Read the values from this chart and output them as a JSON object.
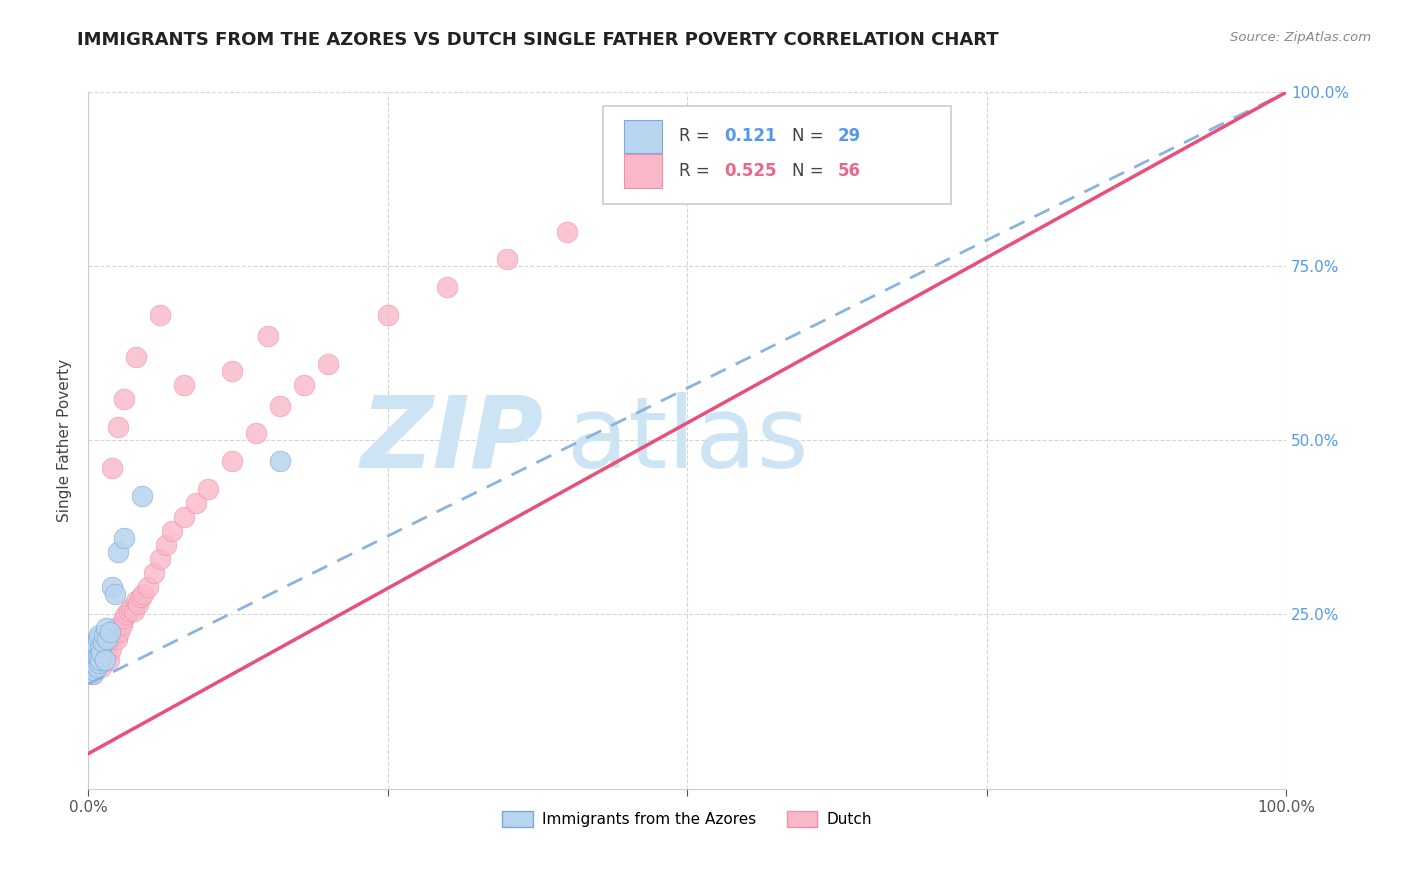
{
  "title": "IMMIGRANTS FROM THE AZORES VS DUTCH SINGLE FATHER POVERTY CORRELATION CHART",
  "source": "Source: ZipAtlas.com",
  "ylabel": "Single Father Poverty",
  "xlim": [
    0,
    1
  ],
  "ylim": [
    0,
    1
  ],
  "color_azores_fill": "#b8d4ee",
  "color_azores_edge": "#7aaadd",
  "color_dutch_fill": "#f9b8c8",
  "color_dutch_edge": "#f090aa",
  "color_line_azores": "#8ab4dd",
  "color_line_dutch": "#e8507a",
  "color_r_azores": "#5599ee",
  "color_r_dutch": "#ee6688",
  "color_n_azores": "#5599ee",
  "color_n_dutch": "#ee6688",
  "watermark_color": "#cce4f4",
  "background_color": "#ffffff",
  "grid_color": "#cccccc",
  "title_color": "#222222",
  "title_fontsize": 13,
  "right_tick_color": "#5599ee",
  "azores_x": [
    0.002,
    0.003,
    0.004,
    0.004,
    0.005,
    0.005,
    0.006,
    0.006,
    0.007,
    0.007,
    0.008,
    0.008,
    0.009,
    0.009,
    0.01,
    0.01,
    0.011,
    0.012,
    0.013,
    0.014,
    0.015,
    0.016,
    0.018,
    0.02,
    0.022,
    0.025,
    0.03,
    0.045,
    0.16
  ],
  "azores_y": [
    0.175,
    0.185,
    0.165,
    0.195,
    0.17,
    0.2,
    0.18,
    0.21,
    0.175,
    0.205,
    0.19,
    0.215,
    0.18,
    0.22,
    0.185,
    0.2,
    0.195,
    0.21,
    0.22,
    0.185,
    0.23,
    0.215,
    0.225,
    0.29,
    0.28,
    0.34,
    0.36,
    0.42,
    0.47
  ],
  "dutch_x": [
    0.003,
    0.004,
    0.005,
    0.006,
    0.007,
    0.008,
    0.009,
    0.01,
    0.011,
    0.012,
    0.013,
    0.014,
    0.015,
    0.016,
    0.017,
    0.018,
    0.019,
    0.02,
    0.022,
    0.024,
    0.026,
    0.028,
    0.03,
    0.032,
    0.034,
    0.036,
    0.038,
    0.04,
    0.042,
    0.044,
    0.046,
    0.05,
    0.055,
    0.06,
    0.065,
    0.07,
    0.08,
    0.09,
    0.1,
    0.12,
    0.14,
    0.16,
    0.18,
    0.2,
    0.25,
    0.3,
    0.35,
    0.4,
    0.15,
    0.12,
    0.02,
    0.025,
    0.03,
    0.04,
    0.06,
    0.08
  ],
  "dutch_y": [
    0.165,
    0.18,
    0.17,
    0.19,
    0.175,
    0.185,
    0.18,
    0.2,
    0.175,
    0.195,
    0.185,
    0.205,
    0.195,
    0.21,
    0.185,
    0.215,
    0.2,
    0.22,
    0.23,
    0.215,
    0.225,
    0.235,
    0.245,
    0.25,
    0.255,
    0.26,
    0.255,
    0.27,
    0.265,
    0.275,
    0.28,
    0.29,
    0.31,
    0.33,
    0.35,
    0.37,
    0.39,
    0.41,
    0.43,
    0.47,
    0.51,
    0.55,
    0.58,
    0.61,
    0.68,
    0.72,
    0.76,
    0.8,
    0.65,
    0.6,
    0.46,
    0.52,
    0.56,
    0.62,
    0.68,
    0.58
  ],
  "line_azores_x0": 0.0,
  "line_azores_y0": 0.15,
  "line_azores_x1": 1.0,
  "line_azores_y1": 1.0,
  "line_dutch_x0": 0.0,
  "line_dutch_y0": 0.05,
  "line_dutch_x1": 1.0,
  "line_dutch_y1": 1.0
}
